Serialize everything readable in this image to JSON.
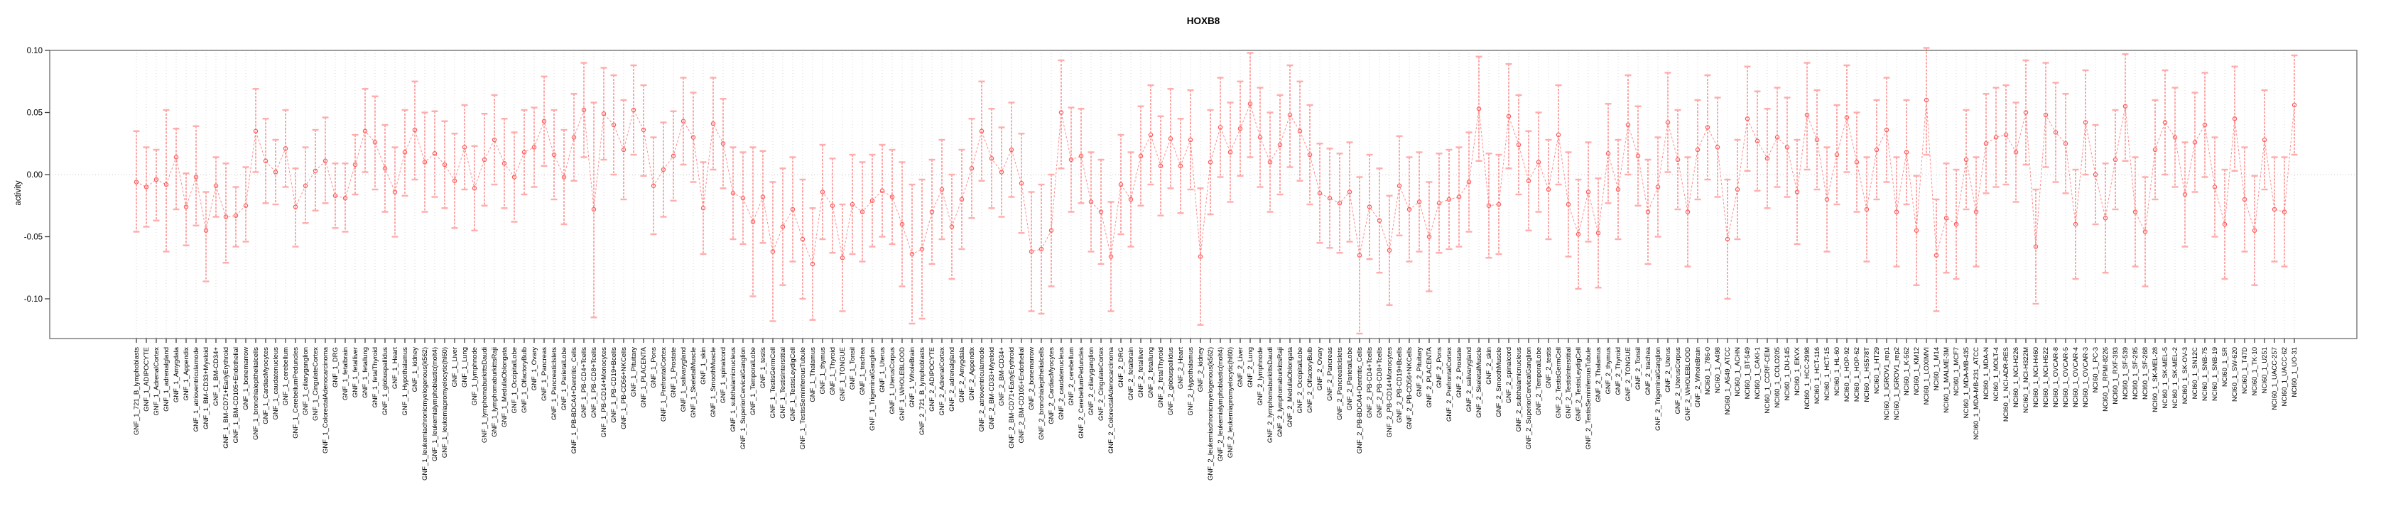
{
  "chart_data": {
    "type": "scatter",
    "title": "HOXB8",
    "ylabel": "activity",
    "xlabel": "",
    "ylim": [
      -0.132,
      0.1
    ],
    "yticks": [
      0.1,
      0.05,
      0.0,
      -0.05,
      -0.1
    ],
    "grid": "vertical dotted gridline at every category; dotted horizontal line at 0",
    "legend": "none",
    "marker": "open circle with error bars, consecutive points joined by dashed line",
    "colors": {
      "series": "#ff6a6a",
      "series_light_caps": "#ffacac",
      "connector": "#ff8c8c",
      "marker_stroke": "#ff5c5c",
      "gridline": "#dadada",
      "zero_line": "#c8c8c8",
      "box_border": "#7f7f7f",
      "axis_tick": "#3f3f3f",
      "text": "#000000"
    },
    "batch_prefixes": [
      "GNF_1_",
      "GNF_2_",
      "NCI60_1_"
    ],
    "gnf_tissues": [
      "721_B_lymphoblasts",
      "ADIPOCYTE",
      "AdrenalCortex",
      "adrenalgland",
      "Amygdala",
      "Appendix",
      "atrioventricularnode",
      "BM-CD33+Myeloid",
      "BM-CD34+",
      "BM-CD71+EarlyErythroid",
      "BM-CD105+Endothelial",
      "bonemarrow",
      "bronchialepithelialcells",
      "CardiacMyocytes",
      "caudatenucleus",
      "cerebellum",
      "CerebellumPeduncles",
      "ciliaryganglion",
      "CingulateCortex",
      "ColorectalAdenocarcinoma",
      "DRG",
      "fetalbrain",
      "fetalliver",
      "fetallung",
      "fetalThyroid",
      "globuspallidus",
      "Heart",
      "Hypothalamus",
      "kidney",
      "leukemiachronicmyelogenous(k562)",
      "leukemialymphoblastic(molt4)",
      "leukemiapromyelocytic(hl60)",
      "Liver",
      "Lung",
      "lymphnode",
      "lymphomaburkittsDaudi",
      "lymphomaburkittsRaji",
      "MedullaOblongata",
      "OccipitalLobe",
      "OlfactoryBulb",
      "Ovary",
      "Pancreas",
      "PancreaticIslets",
      "ParietalLobe",
      "PB-BDCA4+Dentritic_Cells",
      "PB-CD4+Tcells",
      "PB-CD8+Tcells",
      "PB-CD14+Monocytes",
      "PB-CD19+Bcells",
      "PB-CD56+NKCells",
      "Pituitary",
      "PLACENTA",
      "Pons",
      "PrefrontalCortex",
      "Prostate",
      "salivarygland",
      "SkeletalMuscle",
      "skin",
      "SmoothMuscle",
      "spinalcord",
      "subthalamicnucleus",
      "SuperiorCervicalGanglion",
      "TemporalLobe",
      "testis",
      "TestisGermCell",
      "TestisInterstitial",
      "TestisLeydigCell",
      "TestisSeminiferousTubule",
      "Thalamus",
      "thymus",
      "Thyroid",
      "TONGUE",
      "Tonsil",
      "trachea",
      "TrigeminalGanglion",
      "Uterus",
      "UterusCorpus",
      "WHOLEBLOOD",
      "WholeBrain"
    ],
    "nci60_lines": [
      "786-0",
      "A498",
      "A549_ATCC",
      "ACHN",
      "BT-549",
      "CAKI-1",
      "CCRF-CEM",
      "COLO205",
      "DU-145",
      "EKVX",
      "HCC-2998",
      "HCT-116",
      "HCT-15",
      "HL-60",
      "HOP-92",
      "HOP-62",
      "HS578T",
      "HT29",
      "IGROV1_rep1",
      "IGROV1_rep2",
      "K-562",
      "KM12",
      "LOXIMVI",
      "M14",
      "MALME-3M",
      "MCF7",
      "MDA-MB-435",
      "MDA-MB-231_ATCC",
      "MDA-N",
      "MOLT-4",
      "NCI-ADR-RES",
      "NCI-H226",
      "NCI-H322M",
      "NCI-H460",
      "NCI-H522",
      "OVCAR-8",
      "OVCAR-5",
      "OVCAR-4",
      "OVCAR-3",
      "PC-3",
      "RPMI-8226",
      "RXF-393",
      "SF-539",
      "SF-295",
      "SF-268",
      "SK-MEL-28",
      "SK-MEL-5",
      "SK-MEL-2",
      "SK-OV-3",
      "SN12C",
      "SNB-75",
      "SNB-19",
      "SR",
      "SW-620",
      "T47D",
      "TK-10",
      "U251",
      "UACC-257",
      "UACC-62",
      "UO-31"
    ],
    "values": [
      -0.006,
      -0.01,
      -0.004,
      -0.008,
      0.014,
      -0.026,
      -0.002,
      -0.045,
      -0.009,
      -0.034,
      -0.033,
      -0.025,
      0.035,
      0.011,
      0.002,
      0.021,
      -0.026,
      -0.009,
      0.003,
      0.011,
      -0.017,
      -0.019,
      0.008,
      0.035,
      0.026,
      0.005,
      -0.014,
      0.018,
      0.036,
      0.01,
      0.017,
      0.008,
      -0.005,
      0.022,
      -0.011,
      0.012,
      0.028,
      0.009,
      -0.002,
      0.018,
      0.022,
      0.043,
      0.016,
      -0.002,
      0.03,
      0.052,
      -0.028,
      0.049,
      0.04,
      0.02,
      0.052,
      0.036,
      -0.009,
      0.004,
      0.015,
      0.043,
      0.03,
      -0.027,
      0.041,
      0.025,
      -0.015,
      -0.019,
      -0.038,
      -0.018,
      -0.062,
      -0.042,
      -0.028,
      -0.052,
      -0.072,
      -0.014,
      -0.025,
      -0.067,
      -0.024,
      -0.03,
      -0.021,
      -0.013,
      -0.018,
      -0.04,
      -0.064,
      -0.06,
      -0.03,
      -0.012,
      -0.042,
      -0.02,
      0.005,
      0.035,
      0.013,
      0.002,
      0.02,
      -0.007,
      -0.062,
      -0.06,
      -0.045,
      0.05,
      0.012,
      0.015,
      -0.022,
      -0.03,
      -0.066,
      -0.008,
      -0.02,
      0.015,
      0.032,
      0.007,
      0.029,
      0.007,
      0.028,
      -0.066,
      0.01,
      0.038,
      0.018,
      0.037,
      0.057,
      0.03,
      0.01,
      0.024,
      0.048,
      0.035,
      0.016,
      -0.015,
      -0.019,
      -0.023,
      -0.014,
      -0.065,
      -0.026,
      -0.037,
      -0.061,
      -0.009,
      -0.028,
      -0.022,
      -0.05,
      -0.023,
      -0.02,
      -0.018,
      -0.006,
      0.053,
      -0.025,
      -0.024,
      0.047,
      0.024,
      -0.005,
      0.01,
      -0.012,
      0.032,
      -0.024,
      -0.048,
      -0.014,
      -0.047,
      0.017,
      -0.012,
      0.04,
      0.015,
      -0.03,
      -0.01,
      0.042,
      0.012,
      -0.03,
      0.02,
      0.038,
      0.022,
      -0.052,
      -0.012,
      0.045,
      0.027,
      0.013,
      0.03,
      0.022,
      -0.014,
      0.048,
      0.028,
      -0.02,
      0.016,
      0.046,
      0.01,
      -0.028,
      0.02,
      0.036,
      -0.03,
      0.018,
      -0.045,
      0.06,
      -0.065,
      -0.035,
      -0.04,
      0.012,
      -0.03,
      0.025,
      0.03,
      0.032,
      0.018,
      0.05,
      -0.058,
      0.048,
      0.034,
      0.025,
      -0.04,
      0.042,
      0.0,
      -0.035,
      0.012,
      0.055,
      -0.03,
      -0.046,
      0.02,
      0.042,
      0.03,
      -0.016,
      0.026,
      0.04,
      -0.01,
      -0.04,
      0.045,
      -0.02,
      -0.045,
      0.028,
      -0.028,
      -0.03,
      0.056
    ],
    "err_lo": [
      -0.046,
      -0.042,
      -0.037,
      -0.062,
      -0.028,
      -0.057,
      -0.041,
      -0.086,
      -0.034,
      -0.071,
      -0.058,
      -0.054,
      0.002,
      -0.023,
      -0.024,
      -0.01,
      -0.058,
      -0.039,
      -0.029,
      -0.023,
      -0.043,
      -0.046,
      -0.016,
      0.002,
      -0.012,
      -0.03,
      -0.05,
      -0.017,
      -0.004,
      -0.03,
      -0.018,
      -0.027,
      -0.043,
      -0.012,
      -0.045,
      -0.025,
      -0.008,
      -0.027,
      -0.038,
      -0.016,
      -0.01,
      0.007,
      -0.02,
      -0.04,
      -0.005,
      0.014,
      -0.115,
      0.012,
      0.0,
      -0.02,
      0.016,
      -0.001,
      -0.048,
      -0.034,
      -0.021,
      0.008,
      -0.006,
      -0.064,
      0.004,
      -0.011,
      -0.052,
      -0.056,
      -0.098,
      -0.055,
      -0.118,
      -0.089,
      -0.07,
      -0.1,
      -0.117,
      -0.052,
      -0.063,
      -0.11,
      -0.064,
      -0.07,
      -0.058,
      -0.05,
      -0.056,
      -0.09,
      -0.12,
      -0.116,
      -0.072,
      -0.052,
      -0.084,
      -0.06,
      -0.035,
      -0.005,
      -0.027,
      -0.034,
      -0.018,
      -0.047,
      -0.11,
      -0.112,
      -0.09,
      0.005,
      -0.03,
      -0.023,
      -0.062,
      -0.072,
      -0.11,
      -0.048,
      -0.058,
      -0.025,
      -0.008,
      -0.033,
      -0.011,
      -0.031,
      -0.012,
      -0.121,
      -0.032,
      -0.002,
      -0.022,
      -0.001,
      0.014,
      -0.01,
      -0.03,
      -0.016,
      0.006,
      -0.005,
      -0.024,
      -0.055,
      -0.059,
      -0.063,
      -0.054,
      -0.128,
      -0.068,
      -0.079,
      -0.105,
      -0.049,
      -0.07,
      -0.062,
      -0.094,
      -0.063,
      -0.06,
      -0.058,
      -0.046,
      0.011,
      -0.067,
      -0.064,
      0.005,
      -0.016,
      -0.045,
      -0.03,
      -0.052,
      -0.008,
      -0.066,
      -0.092,
      -0.054,
      -0.091,
      -0.023,
      -0.052,
      0.0,
      -0.025,
      -0.072,
      -0.05,
      0.002,
      -0.028,
      -0.074,
      -0.02,
      -0.004,
      -0.018,
      -0.1,
      -0.052,
      0.003,
      -0.013,
      -0.027,
      -0.01,
      -0.018,
      -0.056,
      0.004,
      -0.012,
      -0.062,
      -0.024,
      0.002,
      -0.03,
      -0.07,
      -0.02,
      -0.006,
      -0.074,
      -0.024,
      -0.089,
      0.016,
      -0.11,
      -0.079,
      -0.084,
      -0.028,
      -0.074,
      -0.015,
      -0.01,
      -0.008,
      -0.022,
      0.008,
      -0.104,
      0.006,
      -0.006,
      -0.015,
      -0.084,
      0.0,
      -0.04,
      -0.079,
      -0.028,
      0.011,
      -0.074,
      -0.09,
      -0.02,
      0.0,
      -0.01,
      -0.058,
      -0.014,
      -0.002,
      -0.05,
      -0.084,
      0.003,
      -0.062,
      -0.089,
      -0.012,
      -0.07,
      -0.074,
      0.016
    ],
    "err_hi": [
      0.035,
      0.022,
      0.02,
      0.052,
      0.037,
      0.001,
      0.039,
      -0.014,
      0.014,
      0.009,
      -0.01,
      0.006,
      0.069,
      0.045,
      0.028,
      0.052,
      0.005,
      0.022,
      0.036,
      0.046,
      0.009,
      0.009,
      0.032,
      0.069,
      0.063,
      0.04,
      0.022,
      0.052,
      0.075,
      0.05,
      0.051,
      0.043,
      0.033,
      0.056,
      0.023,
      0.049,
      0.064,
      0.045,
      0.034,
      0.052,
      0.054,
      0.079,
      0.052,
      0.036,
      0.065,
      0.09,
      0.058,
      0.086,
      0.08,
      0.06,
      0.088,
      0.072,
      0.03,
      0.042,
      0.051,
      0.078,
      0.066,
      0.01,
      0.078,
      0.061,
      0.022,
      0.018,
      0.022,
      0.019,
      -0.006,
      0.005,
      0.014,
      -0.004,
      -0.027,
      0.024,
      0.013,
      -0.024,
      0.016,
      0.01,
      0.016,
      0.024,
      0.02,
      0.01,
      -0.008,
      -0.004,
      0.012,
      0.028,
      0.0,
      0.02,
      0.045,
      0.075,
      0.053,
      0.038,
      0.058,
      0.033,
      -0.014,
      -0.008,
      0.0,
      0.092,
      0.054,
      0.053,
      0.018,
      0.012,
      -0.022,
      0.032,
      0.018,
      0.055,
      0.072,
      0.047,
      0.069,
      0.045,
      0.068,
      -0.011,
      0.052,
      0.078,
      0.058,
      0.075,
      0.098,
      0.07,
      0.05,
      0.064,
      0.088,
      0.075,
      0.056,
      0.025,
      0.021,
      0.017,
      0.026,
      -0.002,
      0.016,
      0.005,
      -0.017,
      0.031,
      0.014,
      0.018,
      -0.006,
      0.017,
      0.02,
      0.022,
      0.034,
      0.095,
      0.017,
      0.016,
      0.089,
      0.064,
      0.035,
      0.05,
      0.028,
      0.072,
      0.018,
      -0.004,
      0.026,
      -0.003,
      0.057,
      0.028,
      0.08,
      0.055,
      0.012,
      0.03,
      0.082,
      0.052,
      0.014,
      0.06,
      0.08,
      0.062,
      -0.004,
      0.028,
      0.087,
      0.067,
      0.053,
      0.07,
      0.062,
      0.028,
      0.09,
      0.068,
      0.022,
      0.056,
      0.088,
      0.05,
      0.014,
      0.06,
      0.078,
      0.014,
      0.06,
      -0.001,
      0.102,
      -0.02,
      0.009,
      0.004,
      0.052,
      0.014,
      0.065,
      0.07,
      0.072,
      0.058,
      0.092,
      -0.012,
      0.09,
      0.074,
      0.065,
      0.004,
      0.084,
      0.04,
      0.009,
      0.052,
      0.097,
      0.014,
      -0.002,
      0.06,
      0.084,
      0.07,
      0.026,
      0.066,
      0.082,
      0.03,
      0.004,
      0.087,
      0.022,
      -0.001,
      0.068,
      0.014,
      0.014,
      0.096
    ]
  }
}
